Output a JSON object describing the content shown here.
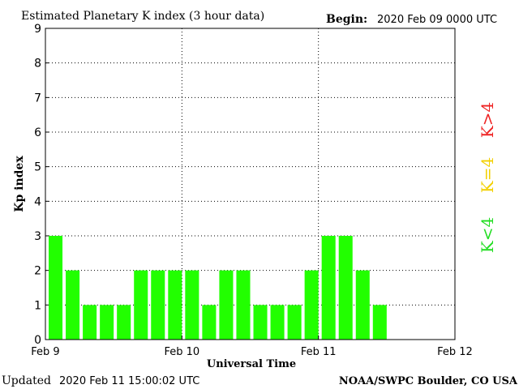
{
  "header": {
    "title": "Estimated Planetary K index (3 hour data)",
    "begin_label": "Begin:",
    "begin_value": "2020 Feb 09 0000 UTC"
  },
  "footer": {
    "updated_label": "Updated",
    "updated_value": "2020 Feb 11 15:00:02 UTC",
    "credit": "NOAA/SWPC Boulder, CO USA"
  },
  "legend": {
    "items": [
      {
        "label": "K<4",
        "color": "#22dd22"
      },
      {
        "label": "K=4",
        "color": "#f2d000"
      },
      {
        "label": "K>4",
        "color": "#ee2222"
      }
    ]
  },
  "chart_data": {
    "type": "bar",
    "title": "Estimated Planetary K index (3 hour data)",
    "xlabel": "Universal Time",
    "ylabel": "Kp index",
    "ylim": [
      0,
      9
    ],
    "yticks": [
      "0",
      "1",
      "2",
      "3",
      "4",
      "5",
      "6",
      "7",
      "8",
      "9"
    ],
    "xticks": [
      "Feb 9",
      "Feb 10",
      "Feb 11",
      "Feb 12"
    ],
    "bar_color": "#22ff00",
    "grid": "dotted",
    "values": [
      3,
      2,
      1,
      1,
      1,
      2,
      2,
      2,
      2,
      1,
      2,
      2,
      1,
      1,
      1,
      2,
      3,
      3,
      2,
      1
    ]
  }
}
